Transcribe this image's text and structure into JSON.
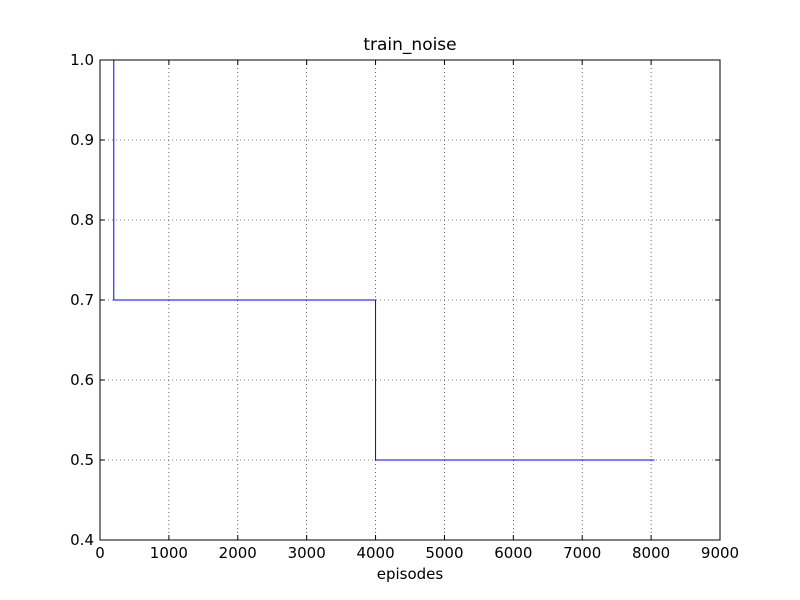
{
  "chart_data": {
    "type": "line",
    "title": "train_noise",
    "xlabel": "episodes",
    "ylabel": "",
    "xlim": [
      0,
      9000
    ],
    "ylim": [
      0.4,
      1.0
    ],
    "xticks": [
      0,
      1000,
      2000,
      3000,
      4000,
      5000,
      6000,
      7000,
      8000,
      9000
    ],
    "yticks": [
      0.4,
      0.5,
      0.6,
      0.7,
      0.8,
      0.9,
      1.0
    ],
    "grid": true,
    "series": [
      {
        "color": "#0000ff",
        "x": [
          200,
          200,
          4000,
          4000,
          8050
        ],
        "y": [
          1.0,
          0.7,
          0.7,
          0.5,
          0.5
        ]
      }
    ]
  }
}
